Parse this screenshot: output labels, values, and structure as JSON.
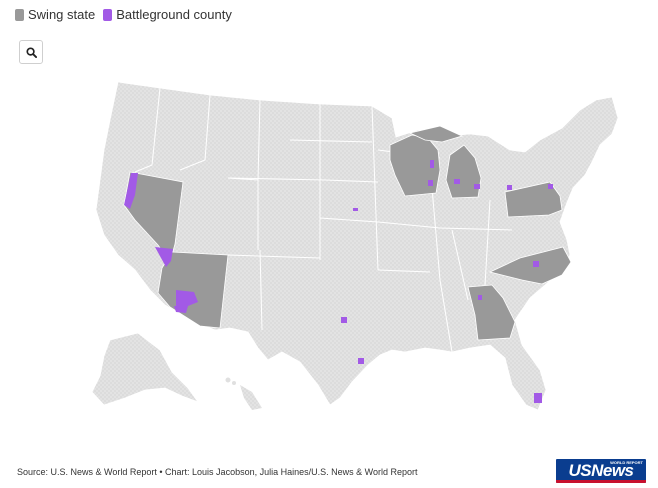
{
  "legend": {
    "items": [
      {
        "label": "Swing state",
        "color": "#999999"
      },
      {
        "label": "Battleground county",
        "color": "#a25ae6"
      }
    ]
  },
  "controls": {
    "zoom_icon": "search-icon"
  },
  "map": {
    "base_color": "#e6e6e6",
    "swing_states": [
      "Nevada",
      "Arizona",
      "Wisconsin",
      "Michigan",
      "Pennsylvania",
      "North Carolina",
      "Georgia"
    ]
  },
  "footer": {
    "source": "Source: U.S. News & World Report • Chart: Louis Jacobson, Julia Haines/U.S. News & World Report"
  },
  "logo": {
    "text": "USNews",
    "tagline": "WORLD REPORT"
  }
}
